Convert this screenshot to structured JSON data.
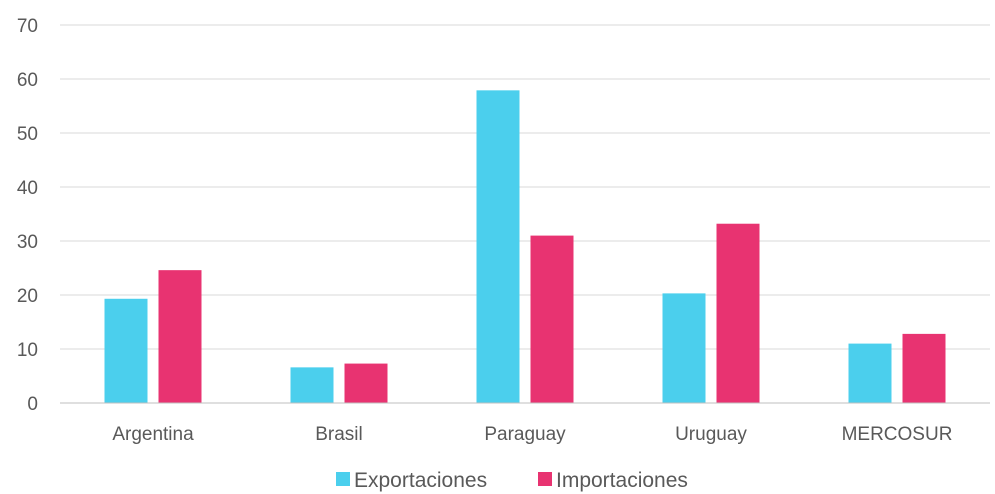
{
  "chart_data": {
    "type": "bar",
    "categories": [
      "Argentina",
      "Brasil",
      "Paraguay",
      "Uruguay",
      "MERCOSUR"
    ],
    "series": [
      {
        "name": "Exportaciones",
        "color": "#4bcfed",
        "values": [
          19.3,
          6.6,
          57.9,
          20.3,
          11.0
        ]
      },
      {
        "name": "Importaciones",
        "color": "#e83371",
        "values": [
          24.6,
          7.3,
          31.0,
          33.2,
          12.8
        ]
      }
    ],
    "ylim": [
      0,
      70
    ],
    "yticks": [
      0,
      10,
      20,
      30,
      40,
      50,
      60,
      70
    ],
    "grid": true,
    "legend_position": "bottom"
  }
}
